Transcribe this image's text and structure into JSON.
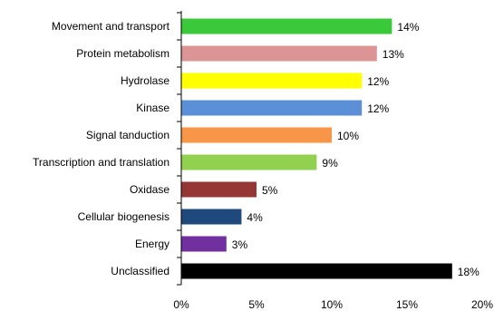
{
  "chart_data": {
    "type": "bar",
    "orientation": "horizontal",
    "title": "",
    "xlabel": "",
    "ylabel": "",
    "xlim": [
      0,
      20
    ],
    "xticks": [
      0,
      5,
      10,
      15,
      20
    ],
    "xtick_labels": [
      "0%",
      "5%",
      "10%",
      "15%",
      "20%"
    ],
    "grid": false,
    "legend": "none",
    "categories": [
      "Movement and transport",
      "Protein metabolism",
      "Hydrolase",
      "Kinase",
      "Signal tanduction",
      "Transcription and translation",
      "Oxidase",
      "Cellular biogenesis",
      "Energy",
      "Unclassified"
    ],
    "values": [
      14,
      13,
      12,
      12,
      10,
      9,
      5,
      4,
      3,
      18
    ],
    "value_labels": [
      "14%",
      "13%",
      "12%",
      "12%",
      "10%",
      "9%",
      "5%",
      "4%",
      "3%",
      "18%"
    ],
    "colors": [
      "#39c93a",
      "#dc9495",
      "#ffff00",
      "#5b8fd8",
      "#f79646",
      "#92d050",
      "#953735",
      "#1f497d",
      "#7030a0",
      "#000000"
    ]
  }
}
